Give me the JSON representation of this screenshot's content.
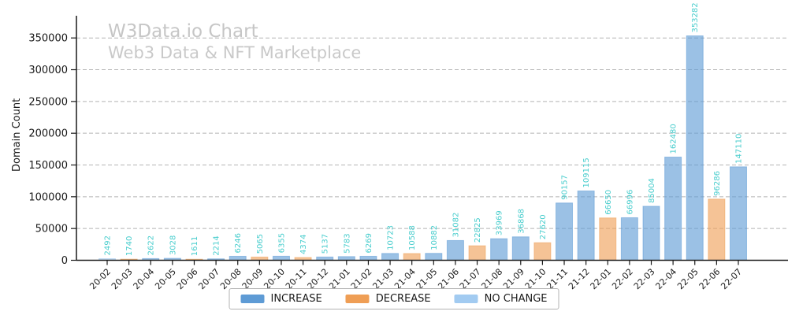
{
  "chart_data": {
    "type": "bar",
    "title": "W3Data.io Chart",
    "subtitle": "Web3 Data & NFT Marketplace",
    "ylabel": "Domain Count",
    "xlabel": "",
    "categories": [
      "20-02",
      "20-03",
      "20-04",
      "20-05",
      "20-06",
      "20-07",
      "20-08",
      "20-09",
      "20-10",
      "20-11",
      "20-12",
      "21-01",
      "21-02",
      "21-03",
      "21-04",
      "21-05",
      "21-06",
      "21-07",
      "21-08",
      "21-09",
      "21-10",
      "21-11",
      "21-12",
      "22-01",
      "22-02",
      "22-03",
      "22-04",
      "22-05",
      "22-06",
      "22-07"
    ],
    "values": [
      2492,
      1740,
      2622,
      3028,
      1611,
      2214,
      6246,
      5065,
      6355,
      4374,
      5137,
      5783,
      6269,
      10723,
      10588,
      10882,
      31082,
      22825,
      33969,
      36868,
      27620,
      90157,
      109115,
      66650,
      66996,
      85004,
      162480,
      353282,
      96286,
      147110
    ],
    "bar_types": [
      "no_change",
      "decrease",
      "increase",
      "increase",
      "decrease",
      "increase",
      "increase",
      "decrease",
      "increase",
      "decrease",
      "increase",
      "increase",
      "increase",
      "increase",
      "decrease",
      "increase",
      "increase",
      "decrease",
      "increase",
      "increase",
      "decrease",
      "increase",
      "increase",
      "decrease",
      "increase",
      "increase",
      "increase",
      "increase",
      "decrease",
      "increase"
    ],
    "legend": [
      {
        "label": "INCREASE",
        "key": "increase"
      },
      {
        "label": "DECREASE",
        "key": "decrease"
      },
      {
        "label": "NO CHANGE",
        "key": "no_change"
      }
    ],
    "legend_position": "bottom-center",
    "yticks": [
      0,
      50000,
      100000,
      150000,
      200000,
      250000,
      300000,
      350000
    ],
    "ylim": [
      0,
      380000
    ],
    "grid": "horizontal-dashed",
    "colors": {
      "increase": "#5e9bd5",
      "decrease": "#ef9e55",
      "no_change": "#a2cbf1",
      "bar_fill_opacity": "0.62",
      "value_label": "#48cdcd",
      "grid_line": "#b5b5b5",
      "axis_line": "#1a1a1a",
      "title_text": "#c6c6c6"
    }
  }
}
